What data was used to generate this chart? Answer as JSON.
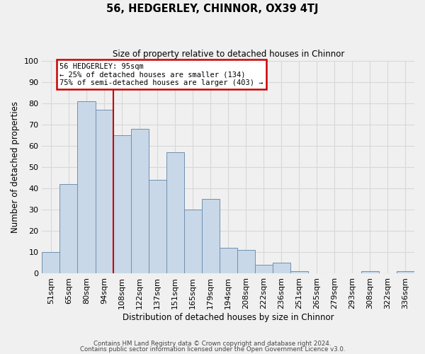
{
  "title": "56, HEDGERLEY, CHINNOR, OX39 4TJ",
  "subtitle": "Size of property relative to detached houses in Chinnor",
  "xlabel": "Distribution of detached houses by size in Chinnor",
  "ylabel": "Number of detached properties",
  "footnote1": "Contains HM Land Registry data © Crown copyright and database right 2024.",
  "footnote2": "Contains public sector information licensed under the Open Government Licence v3.0.",
  "bar_labels": [
    "51sqm",
    "65sqm",
    "80sqm",
    "94sqm",
    "108sqm",
    "122sqm",
    "137sqm",
    "151sqm",
    "165sqm",
    "179sqm",
    "194sqm",
    "208sqm",
    "222sqm",
    "236sqm",
    "251sqm",
    "265sqm",
    "279sqm",
    "293sqm",
    "308sqm",
    "322sqm",
    "336sqm"
  ],
  "bar_values": [
    10,
    42,
    81,
    77,
    65,
    68,
    44,
    57,
    30,
    35,
    12,
    11,
    4,
    5,
    1,
    0,
    0,
    0,
    1,
    0,
    1
  ],
  "bar_color": "#c8d8e8",
  "bar_edge_color": "#7090b0",
  "redline_index": 3,
  "annotation_title": "56 HEDGERLEY: 95sqm",
  "annotation_line1": "← 25% of detached houses are smaller (134)",
  "annotation_line2": "75% of semi-detached houses are larger (403) →",
  "annotation_box_color": "#ffffff",
  "annotation_box_edge": "#cc0000",
  "redline_color": "#cc0000",
  "ylim": [
    0,
    100
  ],
  "yticks": [
    0,
    10,
    20,
    30,
    40,
    50,
    60,
    70,
    80,
    90,
    100
  ],
  "grid_color": "#d8d8d8",
  "background_color": "#f0f0f0"
}
